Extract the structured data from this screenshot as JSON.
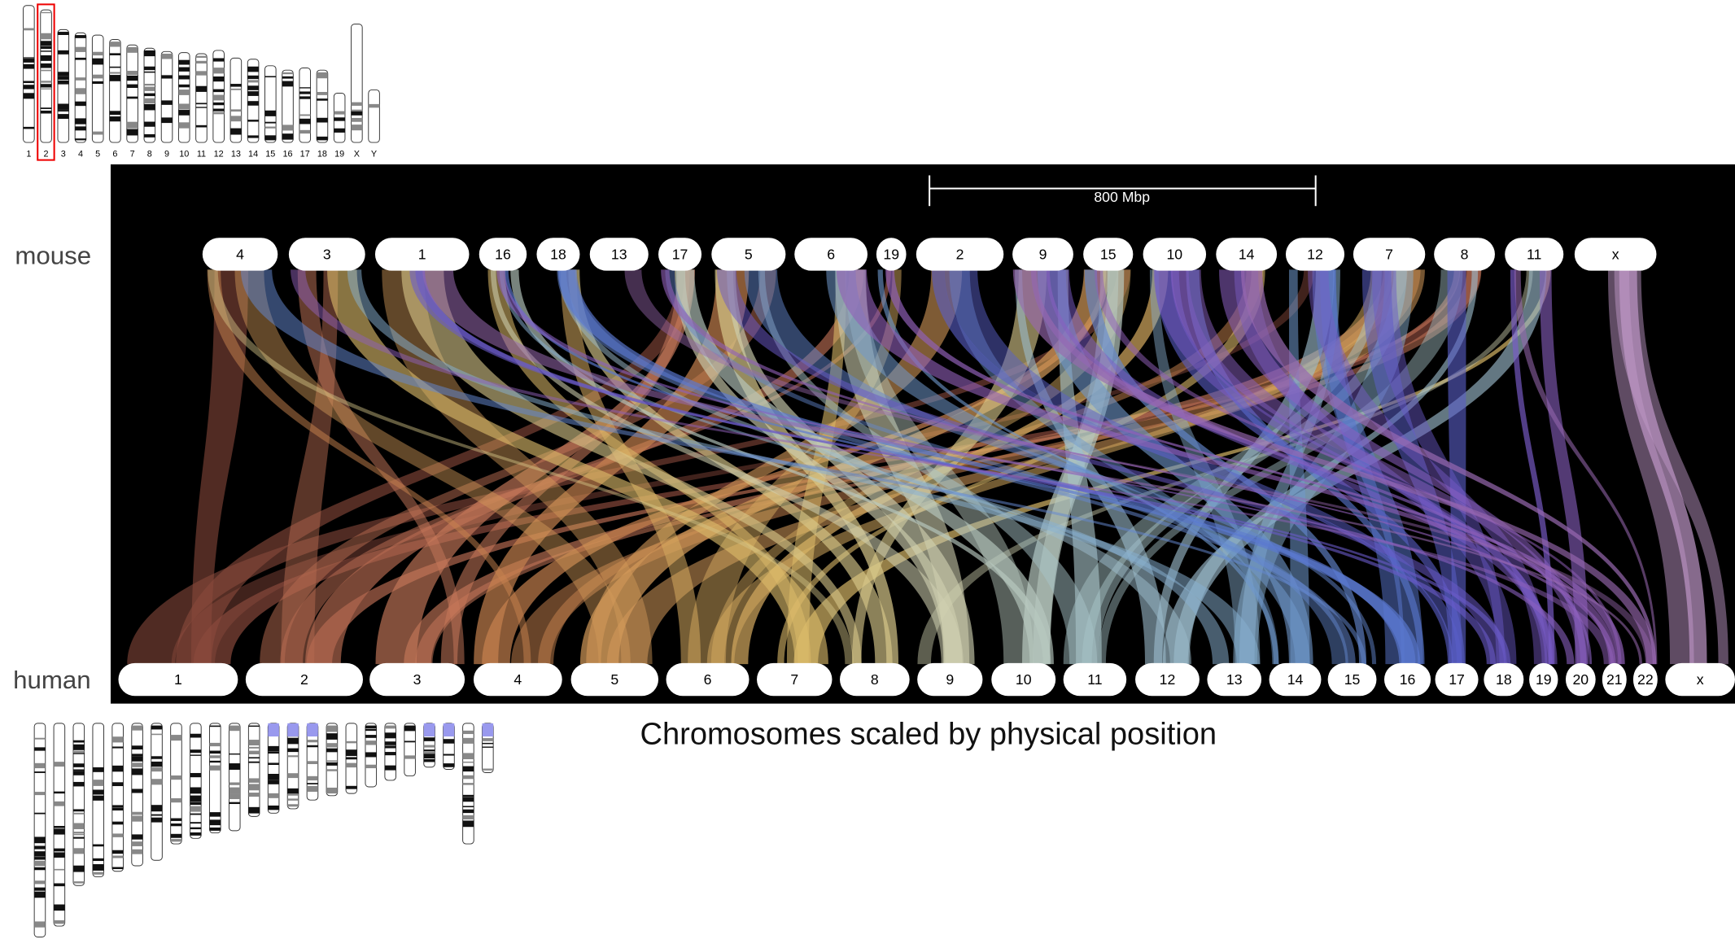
{
  "mouse_karyotype": {
    "labels": [
      "1",
      "2",
      "3",
      "4",
      "5",
      "6",
      "7",
      "8",
      "9",
      "10",
      "11",
      "12",
      "13",
      "14",
      "15",
      "16",
      "17",
      "18",
      "19",
      "X",
      "Y"
    ]
  },
  "scale_bar": "800 Mbp",
  "tracks": {
    "mouse": {
      "label": "mouse",
      "chromosomes": [
        "4",
        "3",
        "1",
        "16",
        "18",
        "13",
        "17",
        "5",
        "6",
        "19",
        "2",
        "9",
        "15",
        "10",
        "14",
        "12",
        "7",
        "8",
        "11",
        "x"
      ]
    },
    "human": {
      "label": "human",
      "chromosomes": [
        "1",
        "2",
        "3",
        "4",
        "5",
        "6",
        "7",
        "8",
        "9",
        "10",
        "11",
        "12",
        "13",
        "14",
        "15",
        "16",
        "17",
        "18",
        "19",
        "20",
        "21",
        "22",
        "x"
      ]
    }
  },
  "caption": "Chromosomes scaled by physical position"
}
